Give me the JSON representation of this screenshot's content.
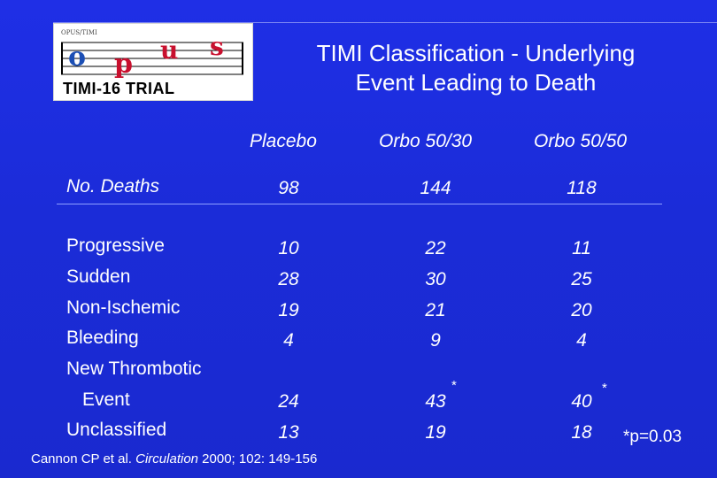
{
  "logo": {
    "small_text": "OPUS/TIMI",
    "letters": [
      "o",
      "p",
      "u",
      "s"
    ],
    "trial_text": "TIMI-16 TRIAL"
  },
  "title": {
    "line1": "TIMI Classification - Underlying",
    "line2": "Event Leading to Death"
  },
  "columns": [
    "Placebo",
    "Orbo 50/30",
    "Orbo 50/50"
  ],
  "deaths_row": {
    "label": "No. Deaths",
    "values": [
      "98",
      "144",
      "118"
    ]
  },
  "rows": [
    {
      "label": "Progressive",
      "values": [
        "10",
        "22",
        "11"
      ]
    },
    {
      "label": "Sudden",
      "values": [
        "28",
        "30",
        "25"
      ]
    },
    {
      "label": "Non-Ischemic",
      "values": [
        "19",
        "21",
        "20"
      ]
    },
    {
      "label": "Bleeding",
      "values": [
        "4",
        "9",
        "4"
      ]
    },
    {
      "label": "New Thrombotic",
      "label2": "Event",
      "values": [
        "24",
        "43",
        "40"
      ]
    },
    {
      "label": "Unclassified",
      "values": [
        "13",
        "19",
        "18"
      ]
    }
  ],
  "significance_marker": "*",
  "p_note": "*p=0.03",
  "citation": {
    "authors": "Cannon CP et al. ",
    "journal": "Circulation",
    "details": " 2000; 102: 149-156"
  },
  "colors": {
    "background": "#1c2cdb",
    "logo_red": "#c8102e",
    "logo_blue": "#1c4fb5"
  }
}
